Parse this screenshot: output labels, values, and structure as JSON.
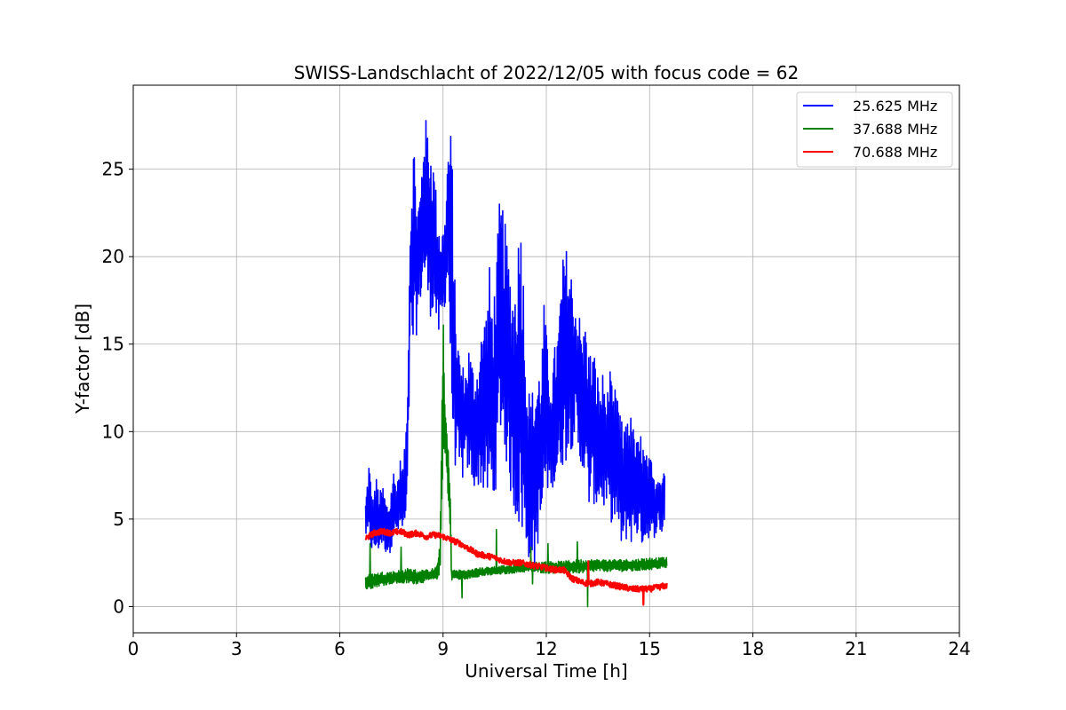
{
  "chart_data": {
    "type": "line",
    "title": "SWISS-Landschlacht of 2022/12/05 with focus code = 62",
    "xlabel": "Universal Time [h]",
    "ylabel": "Y-factor [dB]",
    "xlim": [
      0,
      24
    ],
    "ylim": [
      -1.5,
      29.8
    ],
    "xticks": [
      0,
      3,
      6,
      9,
      12,
      15,
      18,
      21,
      24
    ],
    "yticks": [
      0,
      5,
      10,
      15,
      20,
      25
    ],
    "grid": true,
    "legend_position": "top-right",
    "series": [
      {
        "name": "25.625 MHz",
        "color": "#0000ff",
        "x": [
          6.75,
          6.85,
          6.95,
          7.05,
          7.15,
          7.25,
          7.35,
          7.45,
          7.55,
          7.65,
          7.75,
          7.85,
          7.95,
          8.05,
          8.15,
          8.25,
          8.35,
          8.45,
          8.55,
          8.65,
          8.75,
          8.85,
          8.95,
          9.05,
          9.15,
          9.25,
          9.35,
          9.45,
          9.55,
          9.65,
          9.75,
          9.85,
          9.95,
          10.05,
          10.15,
          10.25,
          10.35,
          10.45,
          10.55,
          10.65,
          10.75,
          10.85,
          10.95,
          11.05,
          11.15,
          11.25,
          11.35,
          11.45,
          11.55,
          11.65,
          11.75,
          11.85,
          11.95,
          12.05,
          12.15,
          12.25,
          12.35,
          12.45,
          12.55,
          12.65,
          12.75,
          12.85,
          12.95,
          13.05,
          13.15,
          13.25,
          13.35,
          13.45,
          13.55,
          13.65,
          13.75,
          13.85,
          13.95,
          14.05,
          14.15,
          14.25,
          14.35,
          14.45,
          14.55,
          14.65,
          14.75,
          14.85,
          14.95,
          15.05,
          15.15,
          15.25,
          15.35,
          15.45
        ],
        "low": [
          4.0,
          3.5,
          3.0,
          3.0,
          3.2,
          3.5,
          3.0,
          3.0,
          3.8,
          4.0,
          4.2,
          4.0,
          4.5,
          15.0,
          14.0,
          16.0,
          17.5,
          18.5,
          17.0,
          16.5,
          17.0,
          15.0,
          16.0,
          17.0,
          19.0,
          10.0,
          8.0,
          7.5,
          7.0,
          8.0,
          7.5,
          7.0,
          6.5,
          7.0,
          6.5,
          6.0,
          6.0,
          5.5,
          7.0,
          10.0,
          9.0,
          8.0,
          6.5,
          5.5,
          4.5,
          4.0,
          3.5,
          2.5,
          3.0,
          1.5,
          3.5,
          4.0,
          6.0,
          6.5,
          7.0,
          6.5,
          7.5,
          8.0,
          8.0,
          9.0,
          9.0,
          10.0,
          7.5,
          8.0,
          6.5,
          5.5,
          6.0,
          5.5,
          6.0,
          5.5,
          5.5,
          5.0,
          4.5,
          4.5,
          3.5,
          3.0,
          4.0,
          3.5,
          4.0,
          4.0,
          3.5,
          3.5,
          4.0,
          3.5,
          4.0,
          4.5,
          4.0,
          5.0
        ],
        "high": [
          6.0,
          8.5,
          6.0,
          7.5,
          6.5,
          7.0,
          6.0,
          6.0,
          8.0,
          7.0,
          8.5,
          8.0,
          11.5,
          23.0,
          27.2,
          23.0,
          24.0,
          28.3,
          27.5,
          26.5,
          25.0,
          22.5,
          21.5,
          22.0,
          26.5,
          27.5,
          18.0,
          15.0,
          14.0,
          13.5,
          15.0,
          14.0,
          13.5,
          14.5,
          16.5,
          17.0,
          19.5,
          17.0,
          20.0,
          23.5,
          23.0,
          21.0,
          19.5,
          18.0,
          20.0,
          23.5,
          18.5,
          13.0,
          12.0,
          13.0,
          13.5,
          14.0,
          18.0,
          14.0,
          13.0,
          15.0,
          16.0,
          19.5,
          20.8,
          20.0,
          19.0,
          17.5,
          17.0,
          15.5,
          16.5,
          14.5,
          15.0,
          14.0,
          12.5,
          13.5,
          12.0,
          13.5,
          12.0,
          13.0,
          11.0,
          10.0,
          11.5,
          11.0,
          10.0,
          9.5,
          10.0,
          9.0,
          8.5,
          8.5,
          7.0,
          8.0,
          7.5,
          8.5
        ]
      },
      {
        "name": "37.688 MHz",
        "color": "#008000",
        "x": [
          6.75,
          7.0,
          7.25,
          7.5,
          7.75,
          8.0,
          8.25,
          8.5,
          8.75,
          8.85,
          8.92,
          8.97,
          9.0,
          9.05,
          9.1,
          9.15,
          9.2,
          9.25,
          9.3,
          9.5,
          9.75,
          10.0,
          10.5,
          11.0,
          11.5,
          12.0,
          12.5,
          13.0,
          13.5,
          14.0,
          14.5,
          15.0,
          15.5
        ],
        "low": [
          0.9,
          1.1,
          1.2,
          1.3,
          1.3,
          1.3,
          1.3,
          1.4,
          1.5,
          1.6,
          2.0,
          6.0,
          9.0,
          8.0,
          8.0,
          5.5,
          4.5,
          1.5,
          1.6,
          1.5,
          1.6,
          1.7,
          1.8,
          1.9,
          2.0,
          1.9,
          1.9,
          1.9,
          2.0,
          2.0,
          2.0,
          2.1,
          2.2
        ],
        "high": [
          1.8,
          1.9,
          2.0,
          2.0,
          2.1,
          2.2,
          2.1,
          2.1,
          2.2,
          2.5,
          4.0,
          13.0,
          17.2,
          12.0,
          10.5,
          9.0,
          8.0,
          2.0,
          2.1,
          2.1,
          2.1,
          2.2,
          2.3,
          2.4,
          2.5,
          2.6,
          2.6,
          2.7,
          2.7,
          2.7,
          2.7,
          2.8,
          2.8
        ],
        "spikes": [
          {
            "x": 6.88,
            "y": 3.6
          },
          {
            "x": 7.78,
            "y": 3.4
          },
          {
            "x": 9.55,
            "y": 0.5
          },
          {
            "x": 10.55,
            "y": 4.4
          },
          {
            "x": 11.55,
            "y": 3.4
          },
          {
            "x": 11.6,
            "y": 1.3
          },
          {
            "x": 12.05,
            "y": 3.6
          },
          {
            "x": 12.9,
            "y": 3.7
          },
          {
            "x": 13.2,
            "y": 0.0
          }
        ]
      },
      {
        "name": "70.688 MHz",
        "color": "#ff0000",
        "x": [
          6.75,
          7.0,
          7.25,
          7.5,
          7.75,
          8.0,
          8.25,
          8.5,
          8.75,
          9.0,
          9.25,
          9.5,
          9.75,
          10.0,
          10.25,
          10.5,
          10.75,
          11.0,
          11.25,
          11.5,
          11.75,
          12.0,
          12.25,
          12.5,
          12.75,
          13.0,
          13.25,
          13.5,
          13.75,
          14.0,
          14.25,
          14.5,
          14.75,
          15.0,
          15.25,
          15.5
        ],
        "y": [
          3.9,
          4.2,
          4.3,
          4.2,
          4.3,
          4.1,
          4.2,
          4.0,
          4.1,
          4.0,
          3.8,
          3.6,
          3.3,
          3.0,
          2.9,
          2.8,
          2.6,
          2.5,
          2.5,
          2.4,
          2.3,
          2.2,
          2.1,
          2.1,
          1.6,
          1.4,
          1.3,
          1.4,
          1.3,
          1.2,
          1.1,
          1.0,
          1.0,
          1.0,
          1.1,
          1.2
        ],
        "spikes": [
          {
            "x": 13.22,
            "y": 2.6
          },
          {
            "x": 14.82,
            "y": 0.1
          }
        ]
      }
    ]
  }
}
